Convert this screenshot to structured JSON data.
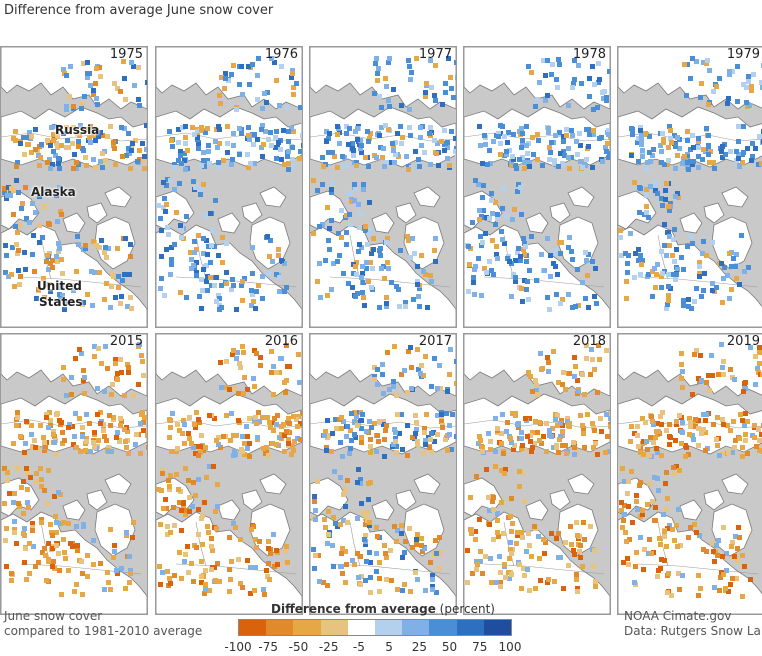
{
  "title": "Difference from average June snow cover",
  "panels": [
    {
      "year": "1975",
      "trend": "mixed"
    },
    {
      "year": "1976",
      "trend": "blue"
    },
    {
      "year": "1977",
      "trend": "blue"
    },
    {
      "year": "1978",
      "trend": "blue"
    },
    {
      "year": "1979",
      "trend": "blue"
    },
    {
      "year": "2015",
      "trend": "orange"
    },
    {
      "year": "2016",
      "trend": "orange"
    },
    {
      "year": "2017",
      "trend": "mixed"
    },
    {
      "year": "2018",
      "trend": "orange"
    },
    {
      "year": "2019",
      "trend": "orange"
    }
  ],
  "map_labels": {
    "russia": "Russia",
    "alaska": "Alaska",
    "us_line1": "United",
    "us_line2": "States"
  },
  "legend": {
    "title_bold": "Difference from average",
    "title_rest": " (percent)",
    "ticks": [
      "-100",
      "-75",
      "-50",
      "-25",
      "-5",
      "5",
      "25",
      "50",
      "75",
      "100"
    ],
    "colors": [
      "#d9620a",
      "#e08a2c",
      "#e6a847",
      "#e8c27f",
      "#ffffff",
      "#b3d0ef",
      "#7fb1e6",
      "#4a8fd6",
      "#2f6fbf",
      "#1f4e9e"
    ]
  },
  "footer_left": {
    "line1": "June snow cover",
    "line2": "compared to 1981-2010 average"
  },
  "footer_right": {
    "line1": "NOAA Cimate.gov",
    "line2": "Data: Rutgers Snow Lab"
  },
  "colors": {
    "land": "#ffffff",
    "ocean": "#c9c9c9",
    "border": "#888888"
  }
}
